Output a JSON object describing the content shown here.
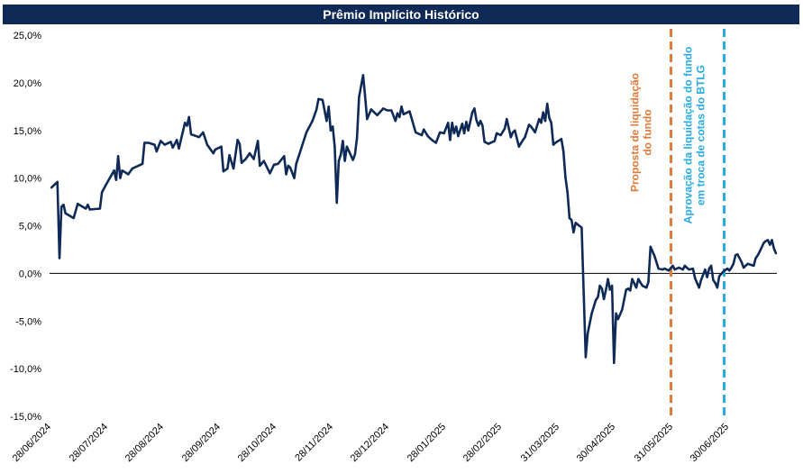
{
  "chart_data": {
    "type": "line",
    "title": "Prêmio Implícito Histórico",
    "xlabel": "",
    "ylabel": "",
    "ylim": [
      -15,
      25
    ],
    "y_ticks": [
      "25,0%",
      "20,0%",
      "15,0%",
      "10,0%",
      "5,0%",
      "0,0%",
      "-5,0%",
      "-10,0%",
      "-15,0%"
    ],
    "x_ticks": [
      "28/06/2024",
      "28/07/2024",
      "28/08/2024",
      "28/09/2024",
      "28/10/2024",
      "28/11/2024",
      "28/12/2024",
      "28/01/2025",
      "28/02/2025",
      "31/03/2025",
      "30/04/2025",
      "31/05/2025",
      "30/06/2025"
    ],
    "grid": false,
    "legend": "none",
    "colors": {
      "line": "#0f2a57",
      "title_bg": "#0f2a57",
      "event1": "#e07b39",
      "event2": "#29abe2",
      "zero_line": "#000000"
    },
    "series": [
      {
        "values": [
          [
            "2024-06-28",
            9.0
          ],
          [
            "2024-07-01",
            9.6
          ],
          [
            "2024-07-02",
            1.6
          ],
          [
            "2024-07-03",
            7.0
          ],
          [
            "2024-07-04",
            7.2
          ],
          [
            "2024-07-05",
            6.3
          ],
          [
            "2024-07-09",
            5.8
          ],
          [
            "2024-07-11",
            7.3
          ],
          [
            "2024-07-15",
            6.8
          ],
          [
            "2024-07-16",
            7.2
          ],
          [
            "2024-07-17",
            6.7
          ],
          [
            "2024-07-22",
            6.8
          ],
          [
            "2024-07-23",
            8.5
          ],
          [
            "2024-07-25",
            9.3
          ],
          [
            "2024-07-29",
            10.8
          ],
          [
            "2024-07-30",
            9.8
          ],
          [
            "2024-07-31",
            12.3
          ],
          [
            "2024-08-01",
            10.0
          ],
          [
            "2024-08-02",
            10.8
          ],
          [
            "2024-08-05",
            10.4
          ],
          [
            "2024-08-07",
            11.0
          ],
          [
            "2024-08-12",
            11.5
          ],
          [
            "2024-08-13",
            13.7
          ],
          [
            "2024-08-15",
            13.7
          ],
          [
            "2024-08-18",
            13.5
          ],
          [
            "2024-08-19",
            12.8
          ],
          [
            "2024-08-21",
            13.9
          ],
          [
            "2024-08-23",
            13.5
          ],
          [
            "2024-08-26",
            13.8
          ],
          [
            "2024-08-27",
            13.2
          ],
          [
            "2024-08-29",
            14.0
          ],
          [
            "2024-08-30",
            13.1
          ],
          [
            "2024-09-02",
            15.8
          ],
          [
            "2024-09-03",
            15.5
          ],
          [
            "2024-09-04",
            16.4
          ],
          [
            "2024-09-05",
            14.6
          ],
          [
            "2024-09-09",
            14.3
          ],
          [
            "2024-09-11",
            14.8
          ],
          [
            "2024-09-13",
            13.5
          ],
          [
            "2024-09-16",
            12.6
          ],
          [
            "2024-09-17",
            13.0
          ],
          [
            "2024-09-20",
            13.3
          ],
          [
            "2024-09-21",
            10.7
          ],
          [
            "2024-09-23",
            11.0
          ],
          [
            "2024-09-24",
            12.4
          ],
          [
            "2024-09-26",
            11.0
          ],
          [
            "2024-09-28",
            14.0
          ],
          [
            "2024-09-29",
            13.6
          ],
          [
            "2024-09-30",
            11.6
          ],
          [
            "2024-10-02",
            12.0
          ],
          [
            "2024-10-04",
            12.6
          ],
          [
            "2024-10-06",
            12.0
          ],
          [
            "2024-10-08",
            13.9
          ],
          [
            "2024-10-09",
            11.3
          ],
          [
            "2024-10-11",
            11.8
          ],
          [
            "2024-10-14",
            10.5
          ],
          [
            "2024-10-16",
            11.4
          ],
          [
            "2024-10-18",
            11.5
          ],
          [
            "2024-10-21",
            12.3
          ],
          [
            "2024-10-22",
            10.4
          ],
          [
            "2024-10-23",
            11.3
          ],
          [
            "2024-10-24",
            11.1
          ],
          [
            "2024-10-26",
            10.0
          ],
          [
            "2024-10-27",
            11.5
          ],
          [
            "2024-10-29",
            12.8
          ],
          [
            "2024-11-01",
            14.8
          ],
          [
            "2024-11-04",
            16.0
          ],
          [
            "2024-11-06",
            17.2
          ],
          [
            "2024-11-07",
            18.3
          ],
          [
            "2024-11-09",
            18.2
          ],
          [
            "2024-11-11",
            16.0
          ],
          [
            "2024-11-12",
            17.5
          ],
          [
            "2024-11-13",
            15.0
          ],
          [
            "2024-11-14",
            15.4
          ],
          [
            "2024-11-15",
            13.3
          ],
          [
            "2024-11-16",
            7.4
          ],
          [
            "2024-11-17",
            11.8
          ],
          [
            "2024-11-18",
            12.5
          ],
          [
            "2024-11-19",
            13.9
          ],
          [
            "2024-11-20",
            11.8
          ],
          [
            "2024-11-21",
            13.3
          ],
          [
            "2024-11-24",
            11.9
          ],
          [
            "2024-11-25",
            12.5
          ],
          [
            "2024-11-26",
            14.2
          ],
          [
            "2024-11-27",
            18.5
          ],
          [
            "2024-11-29",
            20.8
          ],
          [
            "2024-11-30",
            18.6
          ],
          [
            "2024-12-01",
            16.2
          ],
          [
            "2024-12-03",
            17.2
          ],
          [
            "2024-12-06",
            16.6
          ],
          [
            "2024-12-09",
            17.3
          ],
          [
            "2024-12-11",
            17.1
          ],
          [
            "2024-12-13",
            17.1
          ],
          [
            "2024-12-15",
            16.0
          ],
          [
            "2024-12-16",
            16.8
          ],
          [
            "2024-12-17",
            16.4
          ],
          [
            "2024-12-18",
            17.5
          ],
          [
            "2024-12-19",
            16.7
          ],
          [
            "2024-12-22",
            17.0
          ],
          [
            "2024-12-25",
            14.8
          ],
          [
            "2024-12-28",
            14.5
          ],
          [
            "2024-12-29",
            15.1
          ],
          [
            "2024-12-31",
            14.4
          ],
          [
            "2025-01-02",
            14.0
          ],
          [
            "2025-01-04",
            13.7
          ],
          [
            "2025-01-06",
            14.8
          ],
          [
            "2025-01-08",
            14.7
          ],
          [
            "2025-01-10",
            15.8
          ],
          [
            "2025-01-11",
            14.0
          ],
          [
            "2025-01-12",
            15.8
          ],
          [
            "2025-01-13",
            14.7
          ],
          [
            "2025-01-14",
            15.4
          ],
          [
            "2025-01-15",
            14.4
          ],
          [
            "2025-01-17",
            15.7
          ],
          [
            "2025-01-18",
            14.7
          ],
          [
            "2025-01-19",
            15.9
          ],
          [
            "2025-01-20",
            15.0
          ],
          [
            "2025-01-22",
            16.9
          ],
          [
            "2025-01-23",
            17.3
          ],
          [
            "2025-01-24",
            16.1
          ],
          [
            "2025-01-25",
            15.5
          ],
          [
            "2025-01-26",
            16.0
          ],
          [
            "2025-01-27",
            15.5
          ],
          [
            "2025-01-28",
            13.8
          ],
          [
            "2025-01-30",
            13.6
          ],
          [
            "2025-02-02",
            13.9
          ],
          [
            "2025-02-03",
            14.7
          ],
          [
            "2025-02-05",
            14.5
          ],
          [
            "2025-02-07",
            15.2
          ],
          [
            "2025-02-08",
            16.2
          ],
          [
            "2025-02-10",
            14.3
          ],
          [
            "2025-02-11",
            14.8
          ],
          [
            "2025-02-12",
            15.0
          ],
          [
            "2025-02-14",
            13.3
          ],
          [
            "2025-02-16",
            14.0
          ],
          [
            "2025-02-17",
            14.3
          ],
          [
            "2025-02-19",
            15.6
          ],
          [
            "2025-02-20",
            15.4
          ],
          [
            "2025-02-22",
            14.8
          ],
          [
            "2025-02-24",
            16.2
          ],
          [
            "2025-02-25",
            15.8
          ],
          [
            "2025-02-26",
            16.9
          ],
          [
            "2025-02-27",
            16.0
          ],
          [
            "2025-02-28",
            17.8
          ],
          [
            "2025-03-01",
            16.3
          ],
          [
            "2025-03-02",
            15.8
          ],
          [
            "2025-03-03",
            13.5
          ],
          [
            "2025-03-04",
            13.7
          ],
          [
            "2025-03-07",
            14.1
          ],
          [
            "2025-03-08",
            12.8
          ],
          [
            "2025-03-09",
            10.1
          ],
          [
            "2025-03-10",
            8.5
          ],
          [
            "2025-03-11",
            5.8
          ],
          [
            "2025-03-12",
            5.6
          ],
          [
            "2025-03-13",
            4.3
          ],
          [
            "2025-03-14",
            5.3
          ],
          [
            "2025-03-17",
            4.8
          ],
          [
            "2025-03-19",
            -8.8
          ],
          [
            "2025-03-20",
            -6.3
          ],
          [
            "2025-03-22",
            -4.2
          ],
          [
            "2025-03-24",
            -2.8
          ],
          [
            "2025-03-25",
            -2.5
          ],
          [
            "2025-03-26",
            -1.3
          ],
          [
            "2025-03-27",
            -1.6
          ],
          [
            "2025-03-28",
            -2.7
          ],
          [
            "2025-03-29",
            -1.7
          ],
          [
            "2025-03-30",
            -0.6
          ],
          [
            "2025-03-31",
            -1.7
          ],
          [
            "2025-04-01",
            -1.3
          ],
          [
            "2025-04-02",
            -9.4
          ],
          [
            "2025-04-03",
            -4.2
          ],
          [
            "2025-04-04",
            -4.8
          ],
          [
            "2025-04-06",
            -3.8
          ],
          [
            "2025-04-08",
            -1.7
          ],
          [
            "2025-04-09",
            -1.6
          ],
          [
            "2025-04-10",
            -1.8
          ],
          [
            "2025-04-11",
            -0.6
          ],
          [
            "2025-04-13",
            -1.5
          ],
          [
            "2025-04-14",
            -0.6
          ],
          [
            "2025-04-16",
            -1.3
          ],
          [
            "2025-04-18",
            -1.5
          ],
          [
            "2025-04-19",
            -0.9
          ],
          [
            "2025-04-20",
            2.8
          ],
          [
            "2025-04-22",
            1.8
          ],
          [
            "2025-04-24",
            0.5
          ],
          [
            "2025-04-26",
            0.4
          ],
          [
            "2025-04-27",
            0.5
          ],
          [
            "2025-04-29",
            0.3
          ],
          [
            "2025-05-01",
            0.8
          ],
          [
            "2025-05-02",
            0.4
          ],
          [
            "2025-05-04",
            0.6
          ],
          [
            "2025-05-06",
            0.4
          ],
          [
            "2025-05-07",
            0.8
          ],
          [
            "2025-05-09",
            0.4
          ],
          [
            "2025-05-11",
            0.5
          ],
          [
            "2025-05-12",
            -0.5
          ],
          [
            "2025-05-14",
            -1.5
          ],
          [
            "2025-05-15",
            -0.7
          ],
          [
            "2025-05-17",
            0.4
          ],
          [
            "2025-05-18",
            -0.4
          ],
          [
            "2025-05-19",
            0.5
          ],
          [
            "2025-05-20",
            0.8
          ],
          [
            "2025-05-21",
            -0.7
          ],
          [
            "2025-05-22",
            -1.0
          ],
          [
            "2025-05-23",
            -1.5
          ],
          [
            "2025-05-24",
            -0.3
          ],
          [
            "2025-05-26",
            0.2
          ],
          [
            "2025-05-28",
            0.5
          ],
          [
            "2025-05-29",
            0.3
          ],
          [
            "2025-05-30",
            0.6
          ],
          [
            "2025-05-31",
            1.0
          ],
          [
            "2025-06-01",
            1.9
          ],
          [
            "2025-06-02",
            2.0
          ],
          [
            "2025-06-04",
            1.2
          ],
          [
            "2025-06-05",
            0.6
          ],
          [
            "2025-06-07",
            1.0
          ],
          [
            "2025-06-10",
            0.8
          ],
          [
            "2025-06-11",
            1.6
          ],
          [
            "2025-06-12",
            1.9
          ],
          [
            "2025-06-13",
            2.3
          ],
          [
            "2025-06-15",
            3.2
          ],
          [
            "2025-06-16",
            3.4
          ],
          [
            "2025-06-17",
            3.5
          ],
          [
            "2025-06-18",
            3.0
          ],
          [
            "2025-06-19",
            3.5
          ],
          [
            "2025-06-20",
            2.6
          ],
          [
            "2025-06-21",
            2.1
          ]
        ]
      }
    ],
    "annotations": [
      {
        "date": "2025-04-30",
        "label_lines": [
          "Proposta de liquidação",
          "do fundo"
        ],
        "color_key": "event1"
      },
      {
        "date": "2025-05-26",
        "label_lines": [
          "Aprovação da liquidação do fundo",
          "em troca de cotas do BTLG"
        ],
        "color_key": "event2"
      }
    ]
  }
}
